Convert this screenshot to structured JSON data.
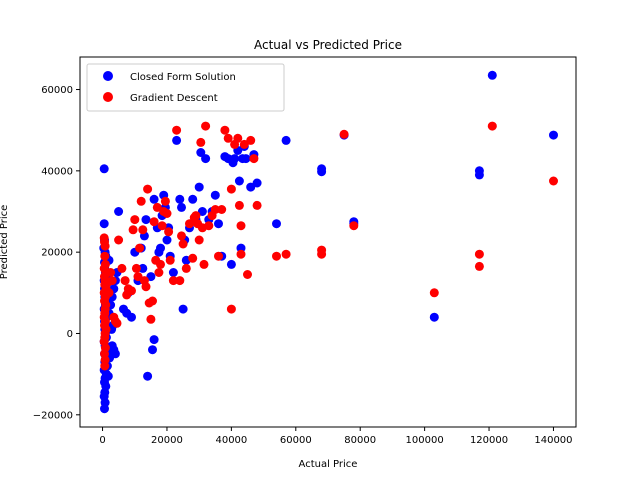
{
  "chart_data": {
    "type": "scatter",
    "title": "Actual vs Predicted Price",
    "xlabel": "Actual Price",
    "ylabel": "Predicted Price",
    "xlim": [
      -7000,
      147000
    ],
    "ylim": [
      -23000,
      68000
    ],
    "xticks": [
      0,
      20000,
      40000,
      60000,
      80000,
      100000,
      120000,
      140000
    ],
    "xtick_labels": [
      "0",
      "20000",
      "40000",
      "60000",
      "80000",
      "100000",
      "120000",
      "140000"
    ],
    "yticks": [
      -20000,
      0,
      20000,
      40000,
      60000
    ],
    "ytick_labels": [
      "−20000",
      "0",
      "20000",
      "40000",
      "60000"
    ],
    "grid": false,
    "legend_position": "upper-left",
    "series": [
      {
        "name": "Closed Form Solution",
        "color": "#0000ff",
        "points": [
          [
            500,
            40500
          ],
          [
            500,
            27000
          ],
          [
            600,
            23000
          ],
          [
            400,
            21000
          ],
          [
            800,
            20000
          ],
          [
            1000,
            19000
          ],
          [
            600,
            17500
          ],
          [
            700,
            16000
          ],
          [
            900,
            15000
          ],
          [
            1200,
            14000
          ],
          [
            500,
            13000
          ],
          [
            800,
            12000
          ],
          [
            600,
            11000
          ],
          [
            1000,
            10000
          ],
          [
            700,
            9000
          ],
          [
            1100,
            8000
          ],
          [
            900,
            7000
          ],
          [
            500,
            6000
          ],
          [
            800,
            5000
          ],
          [
            1300,
            4000
          ],
          [
            600,
            3000
          ],
          [
            1000,
            2000
          ],
          [
            700,
            1000
          ],
          [
            900,
            0
          ],
          [
            1200,
            -1000
          ],
          [
            500,
            -2000
          ],
          [
            800,
            -3000
          ],
          [
            1100,
            -4000
          ],
          [
            600,
            -5000
          ],
          [
            1000,
            -6000
          ],
          [
            700,
            -7000
          ],
          [
            900,
            -8000
          ],
          [
            500,
            -9000
          ],
          [
            1200,
            -10000
          ],
          [
            800,
            -11000
          ],
          [
            600,
            -12000
          ],
          [
            1000,
            -13000
          ],
          [
            700,
            -14500
          ],
          [
            500,
            -15500
          ],
          [
            800,
            -17000
          ],
          [
            600,
            -18500
          ],
          [
            1800,
            -10500
          ],
          [
            1500,
            -8000
          ],
          [
            2200,
            -6000
          ],
          [
            2500,
            -4000
          ],
          [
            3000,
            -3000
          ],
          [
            3500,
            -4000
          ],
          [
            4000,
            -5000
          ],
          [
            2800,
            1000
          ],
          [
            3200,
            2000
          ],
          [
            2000,
            5000
          ],
          [
            2500,
            7000
          ],
          [
            3000,
            9000
          ],
          [
            3500,
            11000
          ],
          [
            4000,
            13000
          ],
          [
            4500,
            15000
          ],
          [
            2000,
            18000
          ],
          [
            5000,
            30000
          ],
          [
            6500,
            6000
          ],
          [
            7500,
            5000
          ],
          [
            8000,
            10000
          ],
          [
            9000,
            4000
          ],
          [
            10000,
            20000
          ],
          [
            11000,
            13000
          ],
          [
            12000,
            21000
          ],
          [
            12500,
            16000
          ],
          [
            13000,
            24000
          ],
          [
            13500,
            28000
          ],
          [
            14000,
            -10500
          ],
          [
            15000,
            14000
          ],
          [
            15500,
            -4000
          ],
          [
            16000,
            -1500
          ],
          [
            16000,
            33000
          ],
          [
            17000,
            26000
          ],
          [
            17500,
            20000
          ],
          [
            18000,
            21000
          ],
          [
            18500,
            29000
          ],
          [
            19000,
            34000
          ],
          [
            19500,
            31000
          ],
          [
            20000,
            23000
          ],
          [
            20500,
            26000
          ],
          [
            21000,
            19000
          ],
          [
            22000,
            15000
          ],
          [
            23000,
            47500
          ],
          [
            24000,
            33000
          ],
          [
            24500,
            31000
          ],
          [
            25000,
            6000
          ],
          [
            25500,
            23000
          ],
          [
            26000,
            18000
          ],
          [
            27000,
            26000
          ],
          [
            28000,
            33000
          ],
          [
            29000,
            28000
          ],
          [
            30000,
            36000
          ],
          [
            30500,
            44500
          ],
          [
            31000,
            30000
          ],
          [
            32000,
            43000
          ],
          [
            33000,
            28000
          ],
          [
            34000,
            30000
          ],
          [
            35000,
            34000
          ],
          [
            36000,
            27000
          ],
          [
            37000,
            19000
          ],
          [
            38000,
            43500
          ],
          [
            39000,
            43000
          ],
          [
            40000,
            17000
          ],
          [
            40500,
            42000
          ],
          [
            41000,
            43000
          ],
          [
            42000,
            45000
          ],
          [
            42500,
            37500
          ],
          [
            43000,
            21000
          ],
          [
            43500,
            43000
          ],
          [
            44000,
            46000
          ],
          [
            44500,
            43000
          ],
          [
            46000,
            36000
          ],
          [
            47000,
            44000
          ],
          [
            48000,
            37000
          ],
          [
            54000,
            27000
          ],
          [
            57000,
            47500
          ],
          [
            68000,
            39800
          ],
          [
            68000,
            40500
          ],
          [
            75000,
            48800
          ],
          [
            78000,
            27500
          ],
          [
            78000,
            27000
          ],
          [
            103000,
            4000
          ],
          [
            117000,
            39000
          ],
          [
            117000,
            40000
          ],
          [
            121000,
            63500
          ],
          [
            140000,
            48800
          ]
        ]
      },
      {
        "name": "Gradient Descent",
        "color": "#ff0000",
        "points": [
          [
            500,
            23500
          ],
          [
            600,
            22500
          ],
          [
            800,
            21500
          ],
          [
            700,
            19000
          ],
          [
            900,
            17000
          ],
          [
            500,
            16000
          ],
          [
            1000,
            15000
          ],
          [
            600,
            14000
          ],
          [
            800,
            13000
          ],
          [
            700,
            12000
          ],
          [
            1100,
            11000
          ],
          [
            500,
            10000
          ],
          [
            900,
            9000
          ],
          [
            600,
            8000
          ],
          [
            1000,
            7000
          ],
          [
            800,
            6000
          ],
          [
            700,
            5000
          ],
          [
            500,
            4000
          ],
          [
            900,
            3000
          ],
          [
            600,
            2000
          ],
          [
            1100,
            1000
          ],
          [
            800,
            0
          ],
          [
            700,
            -1000
          ],
          [
            500,
            -2000
          ],
          [
            900,
            -3500
          ],
          [
            600,
            -5000
          ],
          [
            800,
            -6500
          ],
          [
            700,
            -8000
          ],
          [
            1500,
            12500
          ],
          [
            2000,
            10000
          ],
          [
            2500,
            15000
          ],
          [
            3000,
            13000
          ],
          [
            3500,
            4000
          ],
          [
            4000,
            3000
          ],
          [
            4500,
            2500
          ],
          [
            5000,
            23000
          ],
          [
            6000,
            16000
          ],
          [
            7000,
            13000
          ],
          [
            7500,
            9500
          ],
          [
            8000,
            11000
          ],
          [
            9000,
            10500
          ],
          [
            9500,
            25500
          ],
          [
            10000,
            28000
          ],
          [
            10500,
            16000
          ],
          [
            11000,
            14000
          ],
          [
            11500,
            21000
          ],
          [
            12000,
            32500
          ],
          [
            12500,
            25500
          ],
          [
            13000,
            13000
          ],
          [
            13500,
            11500
          ],
          [
            14000,
            35500
          ],
          [
            14500,
            7500
          ],
          [
            15000,
            3500
          ],
          [
            15500,
            8000
          ],
          [
            16000,
            27500
          ],
          [
            16500,
            18000
          ],
          [
            17000,
            31000
          ],
          [
            17500,
            15000
          ],
          [
            18000,
            17000
          ],
          [
            18500,
            26500
          ],
          [
            19000,
            30000
          ],
          [
            19500,
            32500
          ],
          [
            20000,
            29500
          ],
          [
            20500,
            25000
          ],
          [
            21000,
            18000
          ],
          [
            22000,
            13000
          ],
          [
            23000,
            50000
          ],
          [
            24000,
            13000
          ],
          [
            24500,
            24000
          ],
          [
            25000,
            22000
          ],
          [
            26000,
            16000
          ],
          [
            27000,
            27000
          ],
          [
            28000,
            18500
          ],
          [
            28500,
            28500
          ],
          [
            29000,
            29000
          ],
          [
            29500,
            27000
          ],
          [
            30000,
            23000
          ],
          [
            30500,
            47000
          ],
          [
            31000,
            26000
          ],
          [
            31500,
            17000
          ],
          [
            32000,
            51000
          ],
          [
            33000,
            26500
          ],
          [
            34000,
            29000
          ],
          [
            35000,
            30500
          ],
          [
            36000,
            19000
          ],
          [
            37000,
            30500
          ],
          [
            38000,
            50000
          ],
          [
            39000,
            48000
          ],
          [
            40000,
            6000
          ],
          [
            40000,
            35500
          ],
          [
            41000,
            46500
          ],
          [
            42000,
            48000
          ],
          [
            42500,
            31500
          ],
          [
            43000,
            26500
          ],
          [
            43000,
            19500
          ],
          [
            44000,
            46500
          ],
          [
            45000,
            14500
          ],
          [
            46000,
            47500
          ],
          [
            47000,
            43000
          ],
          [
            48000,
            31500
          ],
          [
            54000,
            19000
          ],
          [
            57000,
            19500
          ],
          [
            68000,
            20500
          ],
          [
            68000,
            19500
          ],
          [
            75000,
            49000
          ],
          [
            78000,
            26500
          ],
          [
            103000,
            10000
          ],
          [
            117000,
            19500
          ],
          [
            117000,
            16500
          ],
          [
            121000,
            51000
          ],
          [
            140000,
            37500
          ]
        ]
      }
    ]
  }
}
